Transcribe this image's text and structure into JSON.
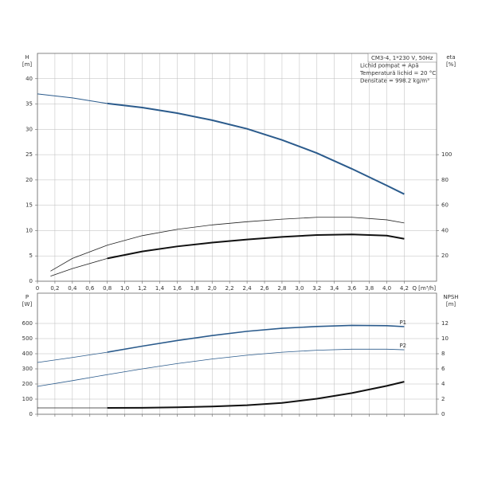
{
  "chart_data": [
    {
      "type": "line",
      "info": [
        "CM3-4, 1*230 V, 50Hz",
        "Lichid pompat = Apă",
        "Temperatură lichid = 20 °C",
        "Densitate = 998.2 kg/m³"
      ],
      "ylabel": [
        "H",
        "[m]"
      ],
      "y2label": [
        "eta",
        "[%]"
      ],
      "xlabel": "Q [m³/h]",
      "xlim": [
        0,
        4.57
      ],
      "ylim": [
        0,
        45
      ],
      "y2lim": [
        0,
        180
      ],
      "xticks": [
        0,
        {
          "value": 0.2,
          "label": "0,2"
        },
        {
          "value": 0.4,
          "label": "0,4"
        },
        {
          "value": 0.6,
          "label": "0,6"
        },
        {
          "value": 0.8,
          "label": "0,8"
        },
        {
          "value": 1.0,
          "label": "1,0"
        },
        {
          "value": 1.2,
          "label": "1,2"
        },
        {
          "value": 1.4,
          "label": "1,4"
        },
        {
          "value": 1.6,
          "label": "1,6"
        },
        {
          "value": 1.8,
          "label": "1,8"
        },
        {
          "value": 2.0,
          "label": "2,0"
        },
        {
          "value": 2.2,
          "label": "2,2"
        },
        {
          "value": 2.4,
          "label": "2,4"
        },
        {
          "value": 2.6,
          "label": "2,6"
        },
        {
          "value": 2.8,
          "label": "2,8"
        },
        {
          "value": 3.0,
          "label": "3,0"
        },
        {
          "value": 3.2,
          "label": "3,2"
        },
        {
          "value": 3.4,
          "label": "3,4"
        },
        {
          "value": 3.6,
          "label": "3,6"
        },
        {
          "value": 3.8,
          "label": "3,8"
        },
        {
          "value": 4.0,
          "label": "4,0"
        },
        {
          "value": 4.2,
          "label": "4,2"
        }
      ],
      "yticks": [
        0,
        5,
        10,
        15,
        20,
        25,
        30,
        35,
        40
      ],
      "y2ticks": [
        20,
        40,
        60,
        80,
        100
      ],
      "grid": true,
      "series": [
        {
          "color": "#2b5b8c",
          "width": 1,
          "x": [
            0,
            0.4,
            0.8
          ],
          "values": [
            37,
            36.2,
            35.1
          ]
        },
        {
          "color": "#2b5b8c",
          "width": 2,
          "x": [
            0.8,
            1.2,
            1.6,
            2.0,
            2.4,
            2.8,
            3.2,
            3.6,
            4.0,
            4.2
          ],
          "values": [
            35.1,
            34.3,
            33.2,
            31.8,
            30.1,
            27.9,
            25.3,
            22.2,
            18.9,
            17.2
          ]
        },
        {
          "color": "#222222",
          "width": 0.8,
          "axis": "y2",
          "x": [
            0.15,
            0.4,
            0.8,
            1.2,
            1.6,
            2.0,
            2.4,
            2.8,
            3.2,
            3.6,
            4.0,
            4.2
          ],
          "values": [
            8,
            18,
            28.5,
            36,
            41,
            44.5,
            47,
            49,
            50.5,
            50.5,
            48.5,
            46
          ]
        },
        {
          "color": "#222222",
          "width": 0.8,
          "axis": "y2",
          "x": [
            0.15,
            0.4,
            0.8
          ],
          "values": [
            4,
            10,
            18
          ]
        },
        {
          "color": "#111111",
          "width": 2,
          "axis": "y2",
          "x": [
            0.8,
            1.2,
            1.6,
            2.0,
            2.4,
            2.8,
            3.2,
            3.6,
            4.0,
            4.2
          ],
          "values": [
            18,
            23.5,
            27.5,
            30.5,
            33,
            35,
            36.5,
            37,
            36,
            33.5
          ]
        }
      ]
    },
    {
      "type": "line",
      "ylabel": [
        "P",
        "[W]"
      ],
      "y2label": [
        "NPSH",
        "[m]"
      ],
      "xlim": [
        0,
        4.57
      ],
      "ylim": [
        0,
        800
      ],
      "y2lim": [
        0,
        16
      ],
      "yticks": [
        0,
        100,
        200,
        300,
        400,
        500,
        600
      ],
      "y2ticks": [
        0,
        2,
        4,
        6,
        8,
        10,
        12
      ],
      "grid": true,
      "series": [
        {
          "color": "#2b5b8c",
          "width": 0.8,
          "x": [
            0,
            0.4,
            0.8
          ],
          "values": [
            342,
            375,
            410
          ]
        },
        {
          "label": "P1",
          "color": "#2b5b8c",
          "width": 1.6,
          "x": [
            0.8,
            1.2,
            1.6,
            2.0,
            2.4,
            2.8,
            3.2,
            3.6,
            4.0,
            4.2
          ],
          "values": [
            410,
            450,
            487,
            520,
            548,
            568,
            580,
            587,
            585,
            579
          ]
        },
        {
          "label": "P2",
          "color": "#2b5b8c",
          "width": 0.8,
          "x": [
            0,
            0.4,
            0.8,
            1.2,
            1.6,
            2.0,
            2.4,
            2.8,
            3.2,
            3.6,
            4.0,
            4.2
          ],
          "values": [
            184,
            222,
            262,
            300,
            335,
            365,
            390,
            410,
            423,
            430,
            430,
            426
          ]
        },
        {
          "color": "#222222",
          "width": 0.8,
          "axis": "y2",
          "x": [
            0,
            0.4,
            0.8
          ],
          "values": [
            0.84,
            0.84,
            0.84
          ]
        },
        {
          "color": "#111111",
          "width": 2,
          "axis": "y2",
          "x": [
            0.8,
            1.2,
            1.6,
            2.0,
            2.4,
            2.8,
            3.2,
            3.6,
            4.0,
            4.2
          ],
          "values": [
            0.84,
            0.86,
            0.92,
            1.03,
            1.2,
            1.5,
            2.05,
            2.8,
            3.75,
            4.3
          ]
        }
      ]
    }
  ]
}
